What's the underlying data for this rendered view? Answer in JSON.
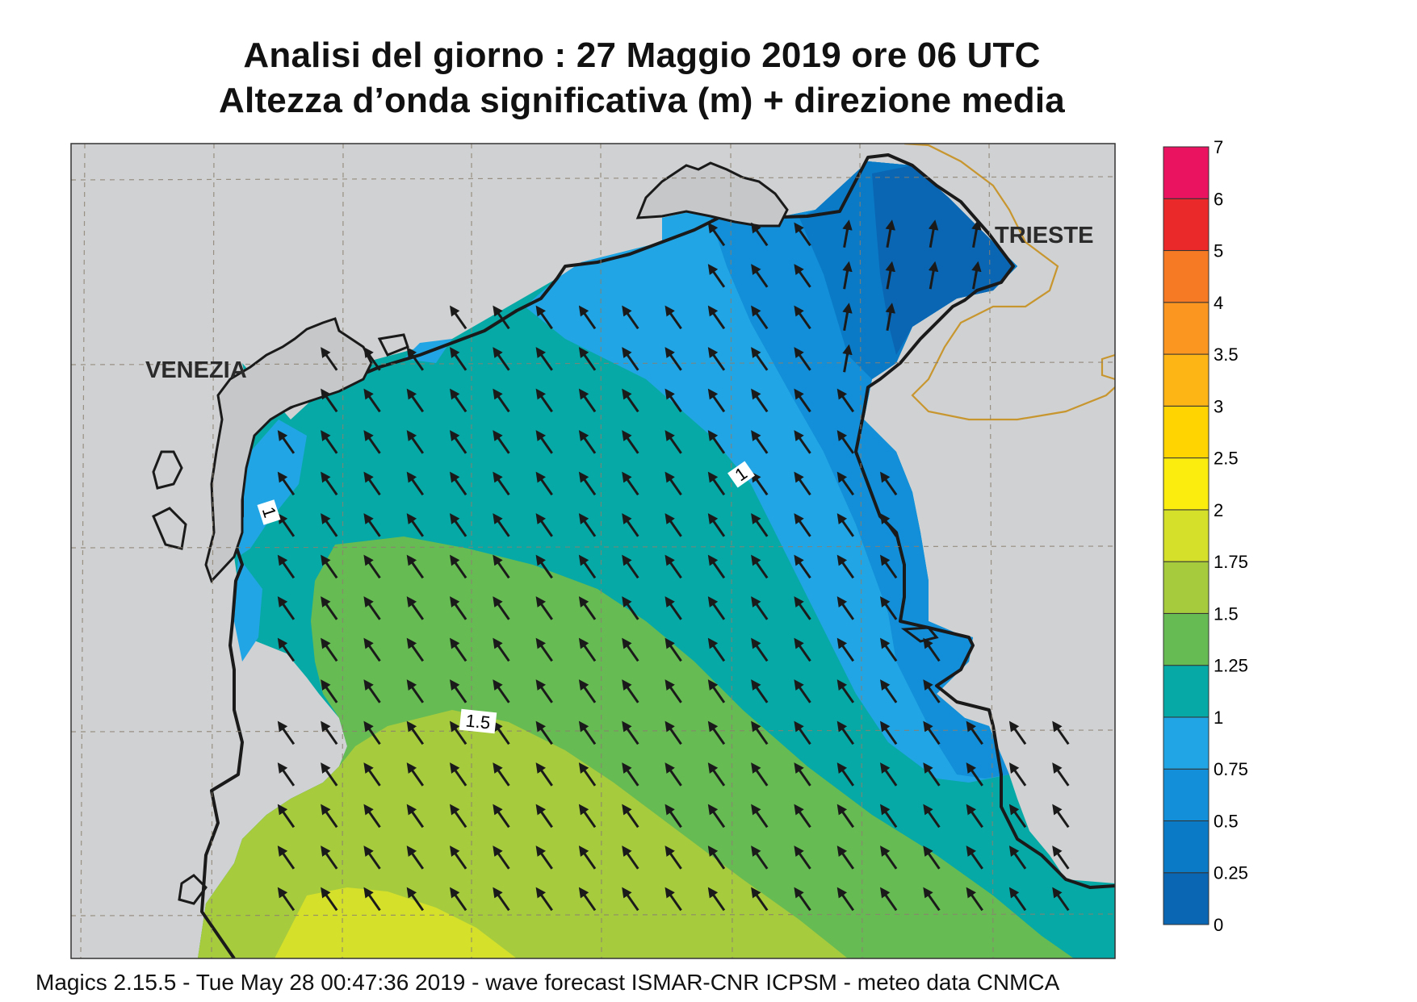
{
  "title": {
    "line1": "Analisi del giorno :  27   Maggio  2019   ore 06 UTC",
    "line2": "Altezza d’onda significativa (m) + direzione media"
  },
  "cities": {
    "venezia": "VENEZIA",
    "trieste": "TRIESTE"
  },
  "legend": {
    "labels": [
      "0",
      "0.25",
      "0.5",
      "0.75",
      "1",
      "1.25",
      "1.5",
      "1.75",
      "2",
      "2.5",
      "3",
      "3.5",
      "4",
      "5",
      "6",
      "7"
    ],
    "colors": [
      "#0a66b3",
      "#0b7ac6",
      "#128fd8",
      "#22a5e4",
      "#06a9a6",
      "#67bb53",
      "#a6cb3d",
      "#d5e02a",
      "#fbee0f",
      "#ffd400",
      "#fdb515",
      "#fb9620",
      "#f57a23",
      "#ea2a2a",
      "#e9135f"
    ]
  },
  "contour_labels": {
    "left": "1",
    "right": "1",
    "bottom": "1.5"
  },
  "footer": "Magics 2.15.5 - Tue May 28 00:47:36 2019 - wave forecast  ISMAR-CNR  ICPSM - meteo data   CNMCA",
  "colors": {
    "land": "#d0d1d2",
    "coast": "#1a1a1a",
    "border": "#c8962f",
    "grid": "#8a8070"
  }
}
